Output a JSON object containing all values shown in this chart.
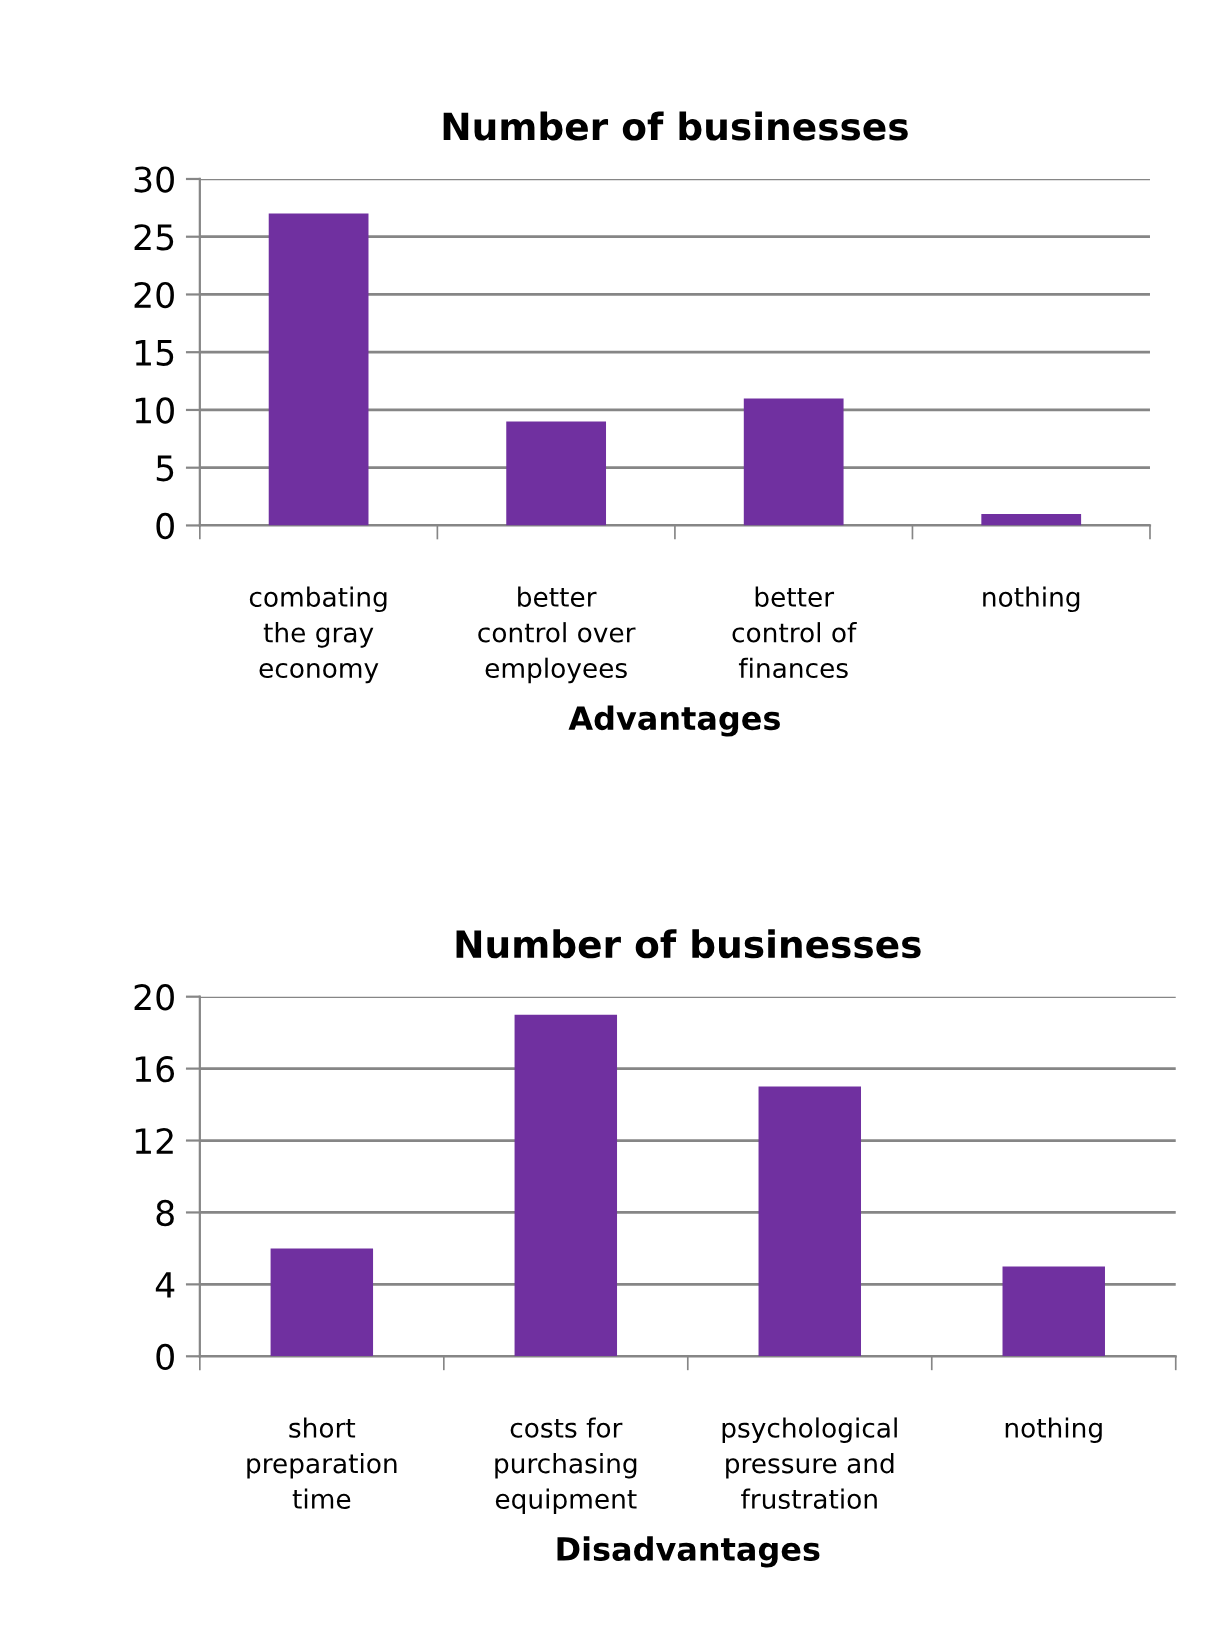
{
  "chart_data": [
    {
      "type": "bar",
      "title": "Number of businesses",
      "xlabel": "Advantages",
      "categories": [
        "combating\nthe gray\neconomy",
        "better\ncontrol over\nemployees",
        "better\ncontrol of\nfinances",
        "nothing"
      ],
      "values": [
        27,
        9,
        11,
        1
      ],
      "color": "#7030a0",
      "ylim": [
        0,
        30
      ],
      "yticks": [
        0,
        5,
        10,
        15,
        20,
        25,
        30
      ],
      "grid": "y",
      "legend": false
    },
    {
      "type": "bar",
      "title": "Number of businesses",
      "xlabel": "Disadvantages",
      "categories": [
        "short\npreparation\ntime",
        "costs for\npurchasing\nequipment",
        "psychological\npressure and\nfrustration",
        "nothing"
      ],
      "values": [
        6,
        19,
        15,
        5
      ],
      "color": "#7030a0",
      "ylim": [
        0,
        20
      ],
      "yticks": [
        0,
        4,
        8,
        12,
        16,
        20
      ],
      "grid": "y",
      "legend": false
    }
  ]
}
